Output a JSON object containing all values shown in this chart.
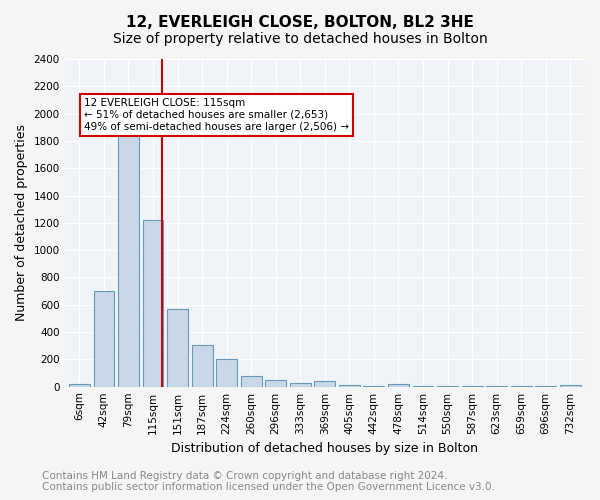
{
  "title": "12, EVERLEIGH CLOSE, BOLTON, BL2 3HE",
  "subtitle": "Size of property relative to detached houses in Bolton",
  "xlabel": "Distribution of detached houses by size in Bolton",
  "ylabel": "Number of detached properties",
  "categories": [
    "6sqm",
    "42sqm",
    "79sqm",
    "115sqm",
    "151sqm",
    "187sqm",
    "224sqm",
    "260sqm",
    "296sqm",
    "333sqm",
    "369sqm",
    "405sqm",
    "442sqm",
    "478sqm",
    "514sqm",
    "550sqm",
    "587sqm",
    "623sqm",
    "659sqm",
    "696sqm",
    "732sqm"
  ],
  "values": [
    20,
    700,
    1950,
    1220,
    570,
    305,
    200,
    80,
    48,
    30,
    38,
    10,
    5,
    18,
    5,
    3,
    2,
    2,
    2,
    2,
    15
  ],
  "bar_color": "#c8d8e8",
  "bar_edge_color": "#6699bb",
  "highlight_index": 3,
  "highlight_color": "#cc0000",
  "annotation_title": "12 EVERLEIGH CLOSE: 115sqm",
  "annotation_line1": "← 51% of detached houses are smaller (2,653)",
  "annotation_line2": "49% of semi-detached houses are larger (2,506) →",
  "annotation_box_color": "#cc0000",
  "ylim": [
    0,
    2400
  ],
  "yticks": [
    0,
    200,
    400,
    600,
    800,
    1000,
    1200,
    1400,
    1600,
    1800,
    2000,
    2200,
    2400
  ],
  "footer_line1": "Contains HM Land Registry data © Crown copyright and database right 2024.",
  "footer_line2": "Contains public sector information licensed under the Open Government Licence v3.0.",
  "background_color": "#f0f4f8",
  "grid_color": "#ffffff",
  "title_fontsize": 11,
  "subtitle_fontsize": 10,
  "xlabel_fontsize": 9,
  "ylabel_fontsize": 9,
  "footer_fontsize": 7.5,
  "tick_fontsize": 7.5
}
